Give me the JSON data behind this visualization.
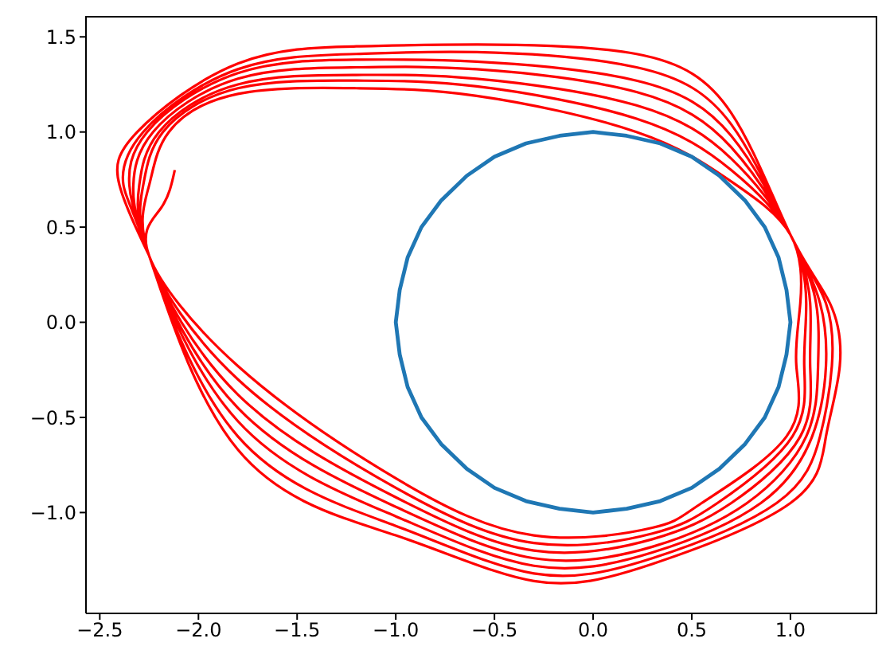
{
  "chart_data": {
    "type": "line",
    "xlim": [
      -2.57,
      1.44
    ],
    "ylim": [
      -1.53,
      1.61
    ],
    "xticks": [
      {
        "value": -2.5,
        "label": "−2.5"
      },
      {
        "value": -2.0,
        "label": "−2.0"
      },
      {
        "value": -1.5,
        "label": "−1.5"
      },
      {
        "value": -1.0,
        "label": "−1.0"
      },
      {
        "value": -0.5,
        "label": "−0.5"
      },
      {
        "value": 0,
        "label": "0.0"
      },
      {
        "value": 0.5,
        "label": "0.5"
      },
      {
        "value": 1.0,
        "label": "1.0"
      }
    ],
    "yticks": [
      {
        "value": -1.0,
        "label": "−1.0"
      },
      {
        "value": -0.5,
        "label": "−0.5"
      },
      {
        "value": 0,
        "label": "0.0"
      },
      {
        "value": 0.5,
        "label": "0.5"
      },
      {
        "value": 1.0,
        "label": "1.0"
      },
      {
        "value": 1.5,
        "label": "1.5"
      }
    ],
    "grid": false,
    "legend": false,
    "marker": "none",
    "line_style": "solid",
    "series": [
      {
        "color": "#ff0000",
        "x": [
          -2.25,
          -2.4,
          -2.31,
          -1.8,
          -1.2,
          -0.59,
          0.22,
          0.7,
          1.0,
          1.2,
          1.25,
          1.18,
          1.0,
          0.3,
          -0.3,
          -1.0,
          -1.8,
          -2.25,
          -2.38,
          -2.28,
          -1.8,
          -1.2,
          -0.59,
          0.22,
          0.7,
          1.0,
          1.18,
          1.21,
          1.15,
          0.93,
          0.3,
          -0.3,
          -1.0,
          -1.8,
          -2.25,
          -2.35,
          -2.26,
          -1.8,
          -1.2,
          -0.59,
          0.22,
          0.7,
          1.0,
          1.15,
          1.18,
          1.11,
          0.85,
          0.3,
          -0.3,
          -1.0,
          -1.8,
          -2.25,
          -2.33,
          -2.23,
          -1.8,
          -1.2,
          -0.59,
          0.22,
          0.7,
          1.0,
          1.13,
          1.14,
          1.08,
          0.78,
          0.3,
          -0.3,
          -1.0,
          -1.8,
          -2.25,
          -2.3,
          -2.2,
          -1.8,
          -1.2,
          -0.59,
          0.22,
          0.7,
          1.0,
          1.1,
          1.1,
          1.05,
          0.7,
          0.3,
          -0.3,
          -1.0,
          -1.8,
          -2.25,
          -2.28,
          -2.18,
          -1.8,
          -1.2,
          -0.59,
          0.22,
          0.7,
          1.0,
          1.08,
          1.07,
          1.01,
          0.63,
          0.3,
          -0.3,
          -1.0,
          -1.8,
          -2.25,
          -2.25,
          -2.15,
          -1.8,
          -1.2,
          -0.59,
          0.22,
          0.7,
          1.0,
          1.05,
          1.03,
          0.98,
          0.55,
          0.3,
          -0.3,
          -1.0,
          -1.8,
          -2.25,
          -2.19,
          -2.12
        ],
        "values": [
          0.35,
          0.72,
          1.0,
          1.36,
          1.45,
          1.46,
          1.41,
          1.1,
          0.46,
          0.1,
          -0.23,
          -0.6,
          -0.95,
          -1.27,
          -1.36,
          -1.12,
          -0.67,
          0.35,
          0.72,
          1.0,
          1.33,
          1.41,
          1.42,
          1.34,
          1.04,
          0.46,
          0.1,
          -0.23,
          -0.6,
          -0.95,
          -1.24,
          -1.32,
          -1.07,
          -0.6,
          0.35,
          0.72,
          1.0,
          1.31,
          1.38,
          1.37,
          1.27,
          0.98,
          0.46,
          0.1,
          -0.23,
          -0.6,
          -0.95,
          -1.21,
          -1.28,
          -1.02,
          -0.52,
          0.35,
          0.72,
          1.0,
          1.28,
          1.34,
          1.33,
          1.21,
          0.92,
          0.46,
          0.1,
          -0.23,
          -0.6,
          -0.95,
          -1.18,
          -1.24,
          -0.97,
          -0.45,
          0.35,
          0.72,
          1.0,
          1.25,
          1.3,
          1.28,
          1.14,
          0.86,
          0.46,
          0.1,
          -0.23,
          -0.6,
          -0.95,
          -1.14,
          -1.2,
          -0.92,
          -0.38,
          0.35,
          0.72,
          1.0,
          1.23,
          1.27,
          1.24,
          1.07,
          0.8,
          0.46,
          0.1,
          -0.23,
          -0.6,
          -0.95,
          -1.11,
          -1.16,
          -0.87,
          -0.3,
          0.35,
          0.72,
          1.0,
          1.2,
          1.23,
          1.19,
          1.0,
          0.74,
          0.46,
          0.1,
          -0.23,
          -0.6,
          -0.95,
          -1.08,
          -1.12,
          -0.82,
          -0.23,
          0.35,
          0.6,
          0.8
        ]
      },
      {
        "color": "#1f77b4",
        "x": [
          1,
          0.98,
          0.94,
          0.87,
          0.77,
          0.64,
          0.5,
          0.34,
          0.17,
          0,
          -0.17,
          -0.34,
          -0.5,
          -0.64,
          -0.77,
          -0.87,
          -0.94,
          -0.98,
          -1,
          -0.98,
          -0.94,
          -0.87,
          -0.77,
          -0.64,
          -0.5,
          -0.34,
          -0.17,
          0,
          0.17,
          0.34,
          0.5,
          0.64,
          0.77,
          0.87,
          0.94,
          0.98,
          1,
          0.98
        ],
        "values": [
          0,
          0.17,
          0.34,
          0.5,
          0.64,
          0.77,
          0.87,
          0.94,
          0.98,
          1,
          0.98,
          0.94,
          0.87,
          0.77,
          0.64,
          0.5,
          0.34,
          0.17,
          0,
          -0.17,
          -0.34,
          -0.5,
          -0.64,
          -0.77,
          -0.87,
          -0.94,
          -0.98,
          -1,
          -0.98,
          -0.94,
          -0.87,
          -0.77,
          -0.64,
          -0.5,
          -0.34,
          -0.17,
          0,
          0.17
        ]
      }
    ]
  }
}
